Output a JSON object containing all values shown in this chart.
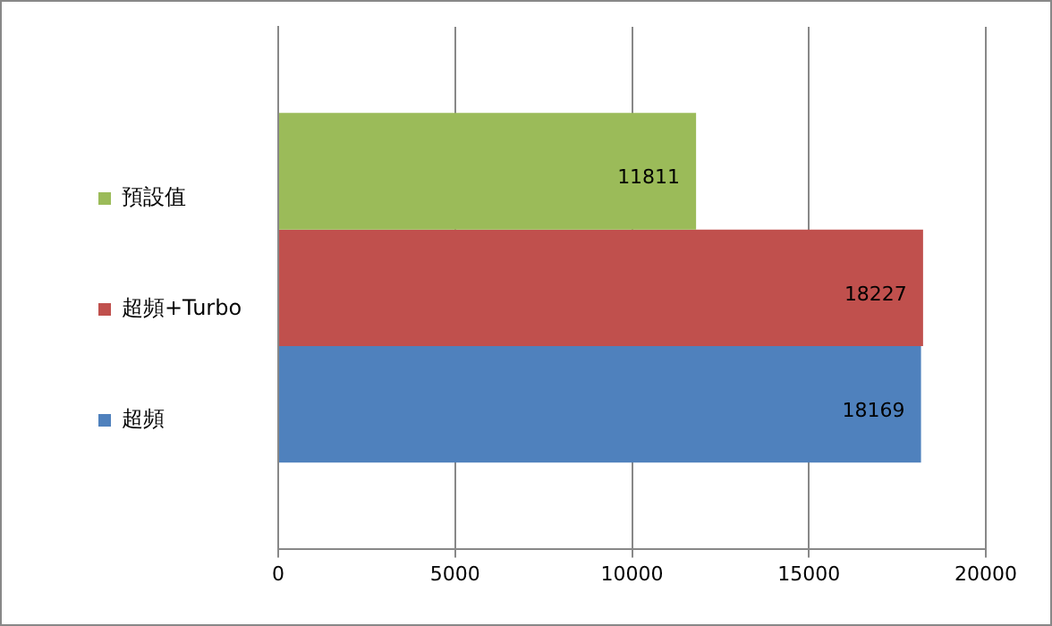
{
  "chart_data": {
    "type": "bar",
    "orientation": "horizontal",
    "categories": [
      null
    ],
    "series": [
      {
        "name": "預設值",
        "color": "#9bbb59",
        "values": [
          11811
        ]
      },
      {
        "name": "超頻+Turbo",
        "color": "#c0504d",
        "values": [
          18227
        ]
      },
      {
        "name": "超頻",
        "color": "#4f81bd",
        "values": [
          18169
        ]
      }
    ],
    "xlim": [
      0,
      20000
    ],
    "xticks": [
      0,
      5000,
      10000,
      15000,
      20000
    ],
    "grid": "x",
    "legend": "left",
    "data_labels": true
  }
}
